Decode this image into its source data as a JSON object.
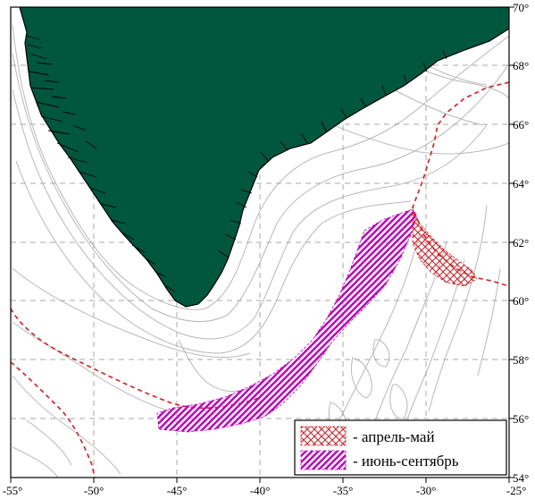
{
  "map": {
    "x_axis": {
      "ticks": [
        {
          "label": "-55°",
          "value": -55
        },
        {
          "label": "-50°",
          "value": -50
        },
        {
          "label": "-45°",
          "value": -45
        },
        {
          "label": "-40°",
          "value": -40
        },
        {
          "label": "-35°",
          "value": -35
        },
        {
          "label": "-30°",
          "value": -30
        },
        {
          "label": "-25°",
          "value": -25
        }
      ]
    },
    "y_axis": {
      "ticks": [
        {
          "label": "70°",
          "value": 70
        },
        {
          "label": "68°",
          "value": 68
        },
        {
          "label": "66°",
          "value": 66
        },
        {
          "label": "64°",
          "value": 64
        },
        {
          "label": "62°",
          "value": 62
        },
        {
          "label": "60°",
          "value": 60
        },
        {
          "label": "58°",
          "value": 58
        },
        {
          "label": "56°",
          "value": 56
        },
        {
          "label": "54°",
          "value": 54
        }
      ]
    },
    "colors": {
      "land": "#00573d",
      "coastline": "#000000",
      "bathymetry": "#b8b8b8",
      "grid": "#a8a8a8",
      "boundary": "#e8161b",
      "april_may_hatch": "#e8161b",
      "june_september_hatch": "#c400c4"
    },
    "legend": {
      "position": "bottom-right",
      "items": [
        {
          "label": "- апрель-май",
          "pattern": "crosshatch",
          "color": "#e8161b"
        },
        {
          "label": "- июнь-сентябрь",
          "pattern": "diagonal-hatch",
          "color": "#c400c4"
        }
      ]
    }
  }
}
